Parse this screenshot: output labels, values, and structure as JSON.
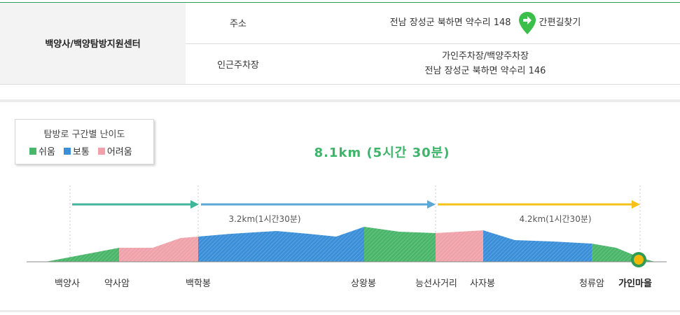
{
  "info": {
    "place_name": "백양사/백양탐방지원센터",
    "address_label": "주소",
    "address_value": "전남 장성군 북하면 약수리 148",
    "nav_label": "간편길찾기",
    "parking_label": "인근주차장",
    "parking_name": "가인주차장/백양주차장",
    "parking_address": "전남 장성군 북하면 약수리 146"
  },
  "legend": {
    "title": "탐방로 구간별 난이도",
    "items": [
      {
        "label": "쉬움",
        "color": "#4ab66a"
      },
      {
        "label": "보통",
        "color": "#3a8fd8"
      },
      {
        "label": "어려움",
        "color": "#f0a2aa"
      }
    ]
  },
  "total_distance": "8.1km (5시간 30분)",
  "segments": [
    {
      "distance": "3.2km(1시간30분)"
    },
    {
      "distance": "4.2km(1시간30분)"
    }
  ],
  "stops": [
    "백양사",
    "약사암",
    "백학봉",
    "상왕봉",
    "능선사거리",
    "사자봉",
    "청류암",
    "가인마을"
  ],
  "colors": {
    "easy": "#4ab66a",
    "normal": "#3a8fd8",
    "hard": "#f0a2aa",
    "arrow_teal": "#3fb69a",
    "arrow_blue": "#5aa7d8",
    "arrow_yellow": "#f6c21a",
    "marker": "#f2b705",
    "marker_ring": "#2f9b55",
    "brand_green": "#2e9b5c"
  }
}
